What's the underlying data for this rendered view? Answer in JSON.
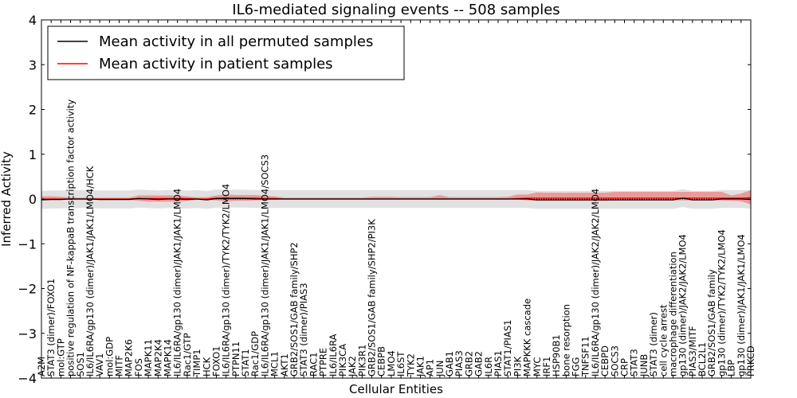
{
  "chart_data": {
    "type": "line",
    "title": "IL6-mediated signaling events -- 508 samples",
    "xlabel": "Cellular Entities",
    "ylabel": "Inferred Activity",
    "ylim": [
      -4,
      4
    ],
    "yticks": [
      "−4",
      "−3",
      "−2",
      "−1",
      "0",
      "1",
      "2",
      "3",
      "4"
    ],
    "ytick_values": [
      -4,
      -3,
      -2,
      -1,
      0,
      1,
      2,
      3,
      4
    ],
    "legend_position": "top-left",
    "categories": [
      "A2M",
      "STAT3 (dimer)/FOXO1",
      "mol:GTP",
      "positive regulation of NF-kappaB transcription factor activity",
      "SOS1",
      "IL6/IL6RA/gp130 (dimer)/JAK1/JAK1/LMO4/HCK",
      "VAV1",
      "mol:GDP",
      "MITF",
      "MAP2K6",
      "FOS",
      "MAPK11",
      "MAP2K4",
      "MAPK14",
      "IL6/IL6RA/gp130 (dimer)/JAK1/JAK1/LMO4",
      "Rac1/GTP",
      "TIMP1",
      "HCK",
      "FOXO1",
      "IL6/IL6RA/gp130 (dimer)/TYK2/TYK2/LMO4",
      "PTPN11",
      "STAT1",
      "Rac1/GDP",
      "IL6/IL6RA/gp130 (dimer)/JAK1/JAK1/LMO4/SOCS3",
      "MCL1",
      "AKT1",
      "GRB2/SOS1/GAB family/SHP2",
      "STAT3 (dimer)/PIAS3",
      "RAC1",
      "PTPRE",
      "IL6/IL6RA",
      "PIK3CA",
      "JAK2",
      "PIK3R1",
      "GRB2/SOS1/GAB family/SHP2/PI3K",
      "CEBPB",
      "LMO4",
      "IL6ST",
      "TYK2",
      "JAK1",
      "AP1",
      "JUN",
      "GAB1",
      "PIAS3",
      "GRB2",
      "GAB2",
      "IL6R",
      "PIAS1",
      "STAT1/PIAS1",
      "PI3K",
      "MAPKKK cascade",
      "MYC",
      "IRF1",
      "HSP90B1",
      "bone resorption",
      "FGG",
      "TNFSF11",
      "IL6/IL6RA/gp130 (dimer)/JAK2/JAK2/LMO4",
      "CEBPD",
      "SOCS3",
      "CRP",
      "STAT3",
      "JUNB",
      "STAT3 (dimer)",
      "cell cycle arrest",
      "macrophage differentiation",
      "gp130 (dimer)/JAK2/JAK2/LMO4",
      "PIAS3/MITF",
      "BCL2L1",
      "GRB2/SOS1/GAB family",
      "gp130 (dimer)/TYK2/TYK2/LMO4",
      "LBP",
      "gp130 (dimer)/JAK1/JAK1/LMO4",
      "PRKCD"
    ],
    "series": [
      {
        "name": "Mean activity in all permuted samples",
        "color": "#000000",
        "values": [
          -0.02,
          -0.01,
          -0.01,
          0,
          0,
          0,
          -0.01,
          -0.01,
          -0.01,
          -0.01,
          0.01,
          0,
          -0.01,
          0,
          0,
          -0.01,
          0,
          -0.02,
          0.01,
          0.01,
          0.01,
          0.01,
          0,
          0,
          0,
          0,
          0,
          0,
          0,
          0,
          0,
          0,
          0,
          0,
          0,
          0,
          0,
          0,
          0,
          0,
          0,
          0,
          0,
          0,
          0,
          0,
          0,
          0,
          0,
          0,
          0,
          -0.02,
          -0.02,
          -0.02,
          -0.02,
          -0.02,
          -0.02,
          -0.02,
          -0.02,
          -0.02,
          -0.02,
          -0.02,
          -0.02,
          -0.02,
          -0.02,
          -0.02,
          0.02,
          -0.02,
          -0.02,
          -0.02,
          0,
          0,
          0,
          -0.01
        ],
        "band": [
          -0.2,
          0.2
        ]
      },
      {
        "name": "Mean activity in patient samples",
        "color": "#ff0000",
        "fill": "#f08080",
        "values": [
          0,
          0,
          0,
          0,
          0,
          0,
          0,
          0,
          0,
          0,
          0.01,
          0.01,
          0.01,
          0.01,
          0.01,
          0.01,
          0,
          0,
          0.02,
          0.02,
          0.02,
          0.02,
          0.02,
          0.01,
          0.01,
          0,
          0,
          0,
          0,
          0,
          0,
          0,
          0,
          0,
          0,
          0,
          0,
          0,
          0,
          0,
          0,
          0,
          0,
          0,
          0,
          0,
          0,
          0,
          0,
          0.01,
          0.02,
          0.02,
          0.02,
          0.02,
          0.02,
          0.02,
          0.02,
          0.02,
          0.02,
          0.02,
          0.02,
          0.02,
          0.02,
          0.02,
          0.02,
          0.02,
          0.02,
          0.02,
          0.02,
          0.02,
          0.02,
          0.02,
          0.02,
          0.03
        ],
        "upper": [
          0.06,
          0.06,
          0.05,
          0.04,
          0.03,
          0.03,
          0.03,
          0.03,
          0.03,
          0.03,
          0.08,
          0.08,
          0.08,
          0.08,
          0.08,
          0.06,
          0.04,
          0.04,
          0.08,
          0.1,
          0.09,
          0.09,
          0.09,
          0.07,
          0.06,
          0.03,
          0.03,
          0.03,
          0.03,
          0.03,
          0.03,
          0.03,
          0.03,
          0.03,
          0.05,
          0.05,
          0.05,
          0.04,
          0.04,
          0.04,
          0.04,
          0.09,
          0.04,
          0.04,
          0.04,
          0.04,
          0.04,
          0.04,
          0.05,
          0.1,
          0.1,
          0.15,
          0.14,
          0.14,
          0.14,
          0.14,
          0.14,
          0.14,
          0.14,
          0.16,
          0.16,
          0.16,
          0.16,
          0.16,
          0.16,
          0.16,
          0.16,
          0.16,
          0.16,
          0.16,
          0.16,
          0.08,
          0.12,
          0.2
        ],
        "lower": [
          -0.02,
          -0.02,
          -0.01,
          -0.02,
          -0.02,
          -0.02,
          -0.02,
          -0.02,
          -0.02,
          -0.02,
          -0.04,
          -0.06,
          -0.06,
          -0.06,
          -0.06,
          -0.04,
          -0.02,
          -0.02,
          -0.03,
          -0.05,
          -0.04,
          -0.04,
          -0.03,
          -0.02,
          -0.02,
          -0.01,
          -0.01,
          -0.01,
          -0.01,
          -0.01,
          -0.01,
          -0.01,
          -0.01,
          -0.01,
          -0.01,
          -0.01,
          -0.01,
          -0.01,
          -0.01,
          -0.01,
          -0.01,
          -0.01,
          -0.01,
          -0.01,
          -0.01,
          -0.01,
          -0.01,
          -0.01,
          -0.01,
          -0.01,
          -0.03,
          -0.04,
          -0.04,
          -0.04,
          -0.04,
          -0.04,
          -0.04,
          -0.04,
          -0.04,
          -0.03,
          -0.03,
          -0.03,
          -0.03,
          -0.03,
          -0.03,
          -0.03,
          -0.03,
          -0.03,
          -0.03,
          -0.03,
          -0.03,
          -0.04,
          -0.05,
          -0.12
        ]
      }
    ]
  }
}
